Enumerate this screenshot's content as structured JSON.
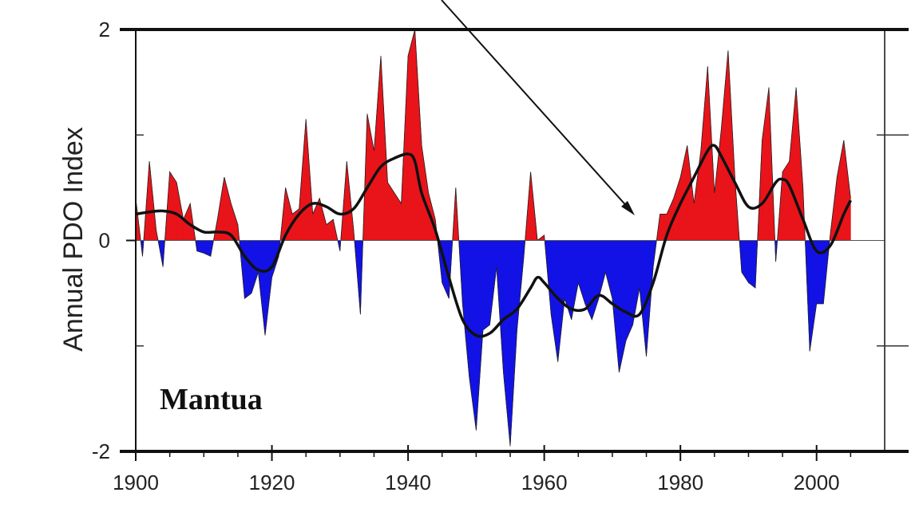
{
  "chart_data": {
    "type": "area",
    "title": "",
    "xlabel": "",
    "ylabel": "Annual PDO Index",
    "annotation": "Mantua",
    "xlim": [
      1900,
      2010
    ],
    "ylim": [
      -2,
      2
    ],
    "x_ticks": [
      1900,
      1920,
      1940,
      1960,
      1980,
      2000
    ],
    "x_tick_labels": [
      "1900",
      "1920",
      "1940",
      "1960",
      "1980",
      "2000"
    ],
    "y_ticks": [
      2,
      0,
      -2
    ],
    "y_tick_labels": [
      "2",
      "0",
      "-2"
    ],
    "positive_color": "#e8141a",
    "negative_color": "#1212e6",
    "line_color": "#111111",
    "grid": false,
    "series": [
      {
        "x": [
          1900,
          1901,
          1902,
          1903,
          1904,
          1905,
          1906,
          1907,
          1908,
          1909,
          1910,
          1911,
          1912,
          1913,
          1914,
          1915,
          1916,
          1917,
          1918,
          1919,
          1920,
          1921,
          1922,
          1923,
          1924,
          1925,
          1926,
          1927,
          1928,
          1929,
          1930,
          1931,
          1932,
          1933,
          1934,
          1935,
          1936,
          1937,
          1938,
          1939,
          1940,
          1941,
          1942,
          1943,
          1944,
          1945,
          1946,
          1947,
          1948,
          1949,
          1950,
          1951,
          1952,
          1953,
          1954,
          1955,
          1956,
          1957,
          1958,
          1959,
          1960,
          1961,
          1962,
          1963,
          1964,
          1965,
          1966,
          1967,
          1968,
          1969,
          1970,
          1971,
          1972,
          1973,
          1974,
          1975,
          1976,
          1977,
          1978,
          1979,
          1980,
          1981,
          1982,
          1983,
          1984,
          1985,
          1986,
          1987,
          1988,
          1989,
          1990,
          1991,
          1992,
          1993,
          1994,
          1995,
          1996,
          1997,
          1998,
          1999,
          2000,
          2001,
          2002,
          2003,
          2004,
          2005
        ],
        "values": [
          0.4,
          -0.15,
          0.75,
          0.1,
          -0.25,
          0.65,
          0.55,
          0.2,
          0.35,
          -0.1,
          -0.12,
          -0.15,
          0.2,
          0.6,
          0.35,
          0.15,
          -0.55,
          -0.5,
          -0.3,
          -0.9,
          -0.35,
          -0.15,
          0.5,
          0.25,
          0.3,
          1.15,
          0.25,
          0.4,
          0.15,
          0.2,
          -0.1,
          0.75,
          0.1,
          -0.7,
          1.2,
          0.85,
          1.75,
          0.55,
          0.45,
          0.35,
          1.75,
          2.0,
          0.9,
          0.45,
          0.2,
          -0.4,
          -0.55,
          0.5,
          -0.6,
          -1.3,
          -1.8,
          -0.85,
          -0.8,
          -0.25,
          -1.25,
          -1.95,
          -0.85,
          -0.15,
          0.65,
          0.0,
          0.05,
          -0.7,
          -1.15,
          -0.55,
          -0.75,
          -0.4,
          -0.6,
          -0.75,
          -0.55,
          -0.3,
          -0.55,
          -1.25,
          -0.95,
          -0.8,
          -0.45,
          -1.1,
          -0.25,
          0.25,
          0.25,
          0.4,
          0.6,
          0.9,
          0.35,
          0.85,
          1.65,
          0.45,
          1.05,
          1.8,
          0.6,
          -0.3,
          -0.4,
          -0.45,
          0.95,
          1.45,
          -0.2,
          0.65,
          0.75,
          1.45,
          0.5,
          -1.05,
          -0.6,
          -0.6,
          0.05,
          0.6,
          0.95,
          0.4
        ]
      },
      {
        "name": "",
        "type": "smoothed",
        "x": [
          1900,
          1902,
          1904,
          1906,
          1908,
          1910,
          1912,
          1914,
          1916,
          1918,
          1920,
          1922,
          1924,
          1926,
          1928,
          1930,
          1932,
          1934,
          1936,
          1938,
          1940,
          1941,
          1942,
          1944,
          1946,
          1948,
          1950,
          1952,
          1954,
          1956,
          1958,
          1959,
          1960,
          1962,
          1964,
          1966,
          1968,
          1970,
          1972,
          1974,
          1976,
          1978,
          1980,
          1982,
          1984,
          1985,
          1986,
          1988,
          1990,
          1992,
          1994,
          1995,
          1996,
          1998,
          2000,
          2002,
          2004,
          2005
        ],
        "values": [
          0.25,
          0.27,
          0.28,
          0.25,
          0.15,
          0.08,
          0.08,
          0.05,
          -0.15,
          -0.28,
          -0.25,
          0.05,
          0.25,
          0.35,
          0.32,
          0.25,
          0.3,
          0.5,
          0.7,
          0.78,
          0.82,
          0.75,
          0.45,
          0.1,
          -0.35,
          -0.75,
          -0.9,
          -0.88,
          -0.75,
          -0.65,
          -0.45,
          -0.35,
          -0.4,
          -0.55,
          -0.65,
          -0.65,
          -0.52,
          -0.6,
          -0.68,
          -0.7,
          -0.4,
          0.05,
          0.35,
          0.6,
          0.85,
          0.9,
          0.8,
          0.55,
          0.32,
          0.35,
          0.55,
          0.58,
          0.52,
          0.2,
          -0.1,
          -0.05,
          0.25,
          0.38
        ]
      }
    ]
  }
}
